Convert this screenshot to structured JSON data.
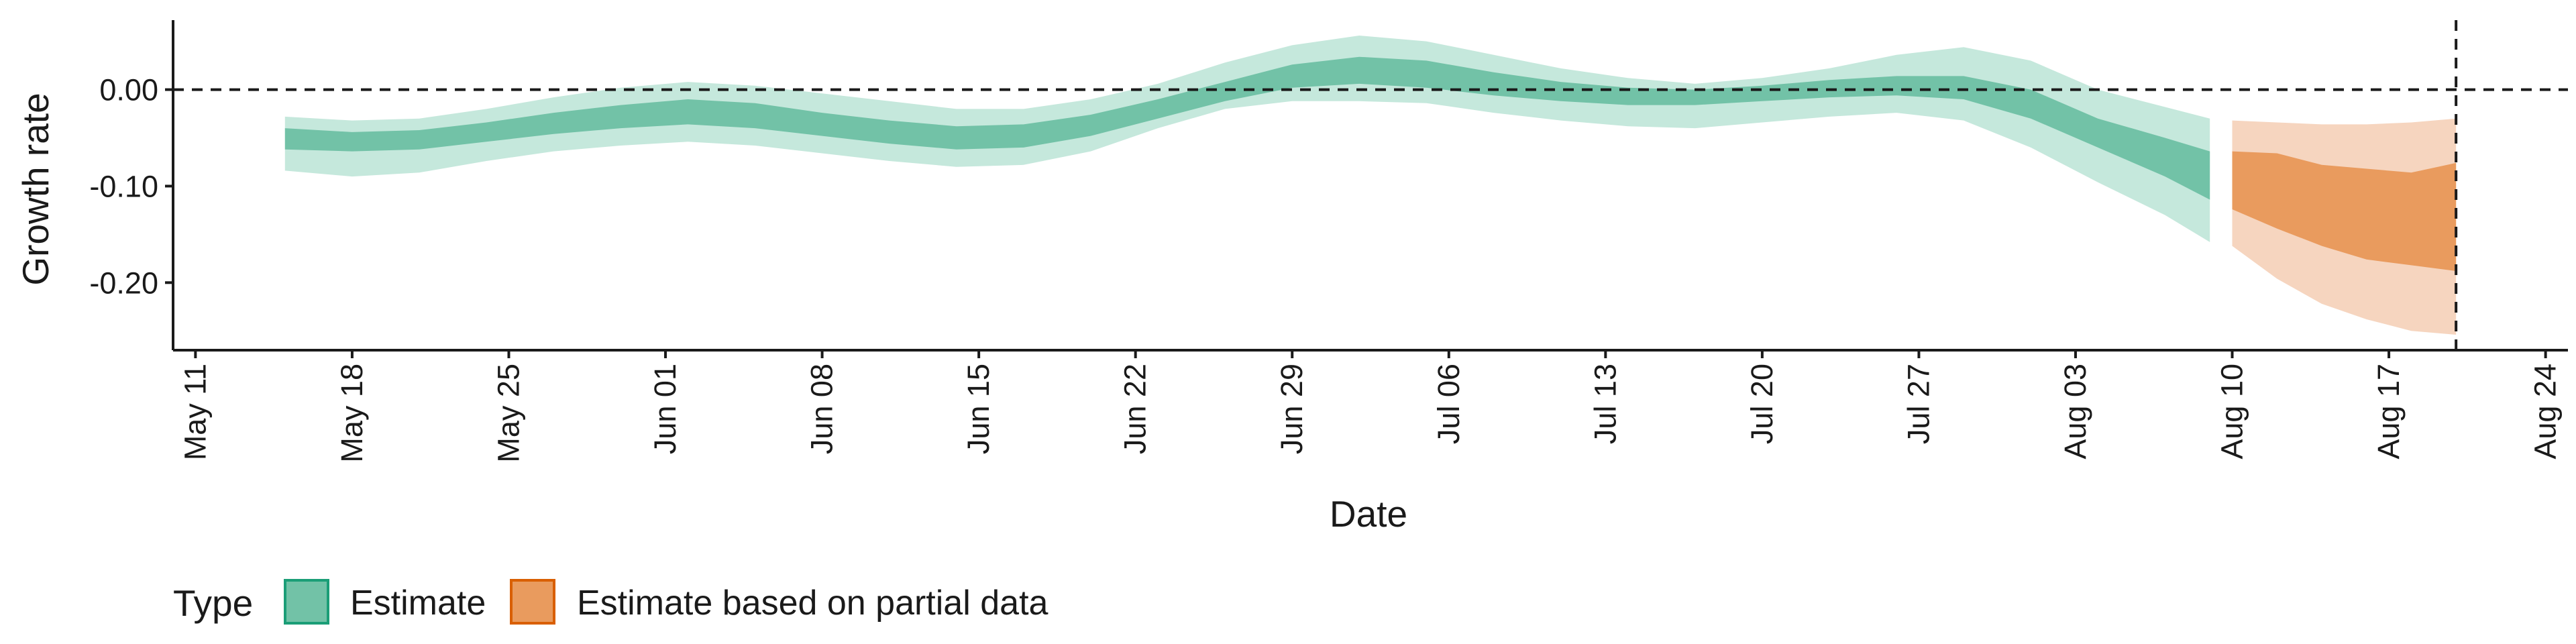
{
  "chart_data": {
    "type": "area",
    "title": "",
    "xlabel": "Date",
    "ylabel": "Growth rate",
    "ylim": [
      -0.27,
      0.072
    ],
    "xlim": [
      "2020-05-10",
      "2020-08-25"
    ],
    "grid": false,
    "y_ticks": [
      {
        "value": 0.0,
        "label": "0.00"
      },
      {
        "value": -0.1,
        "label": "-0.10"
      },
      {
        "value": -0.2,
        "label": "-0.20"
      }
    ],
    "x_ticks": [
      {
        "date": "2020-05-11",
        "label": "May 11"
      },
      {
        "date": "2020-05-18",
        "label": "May 18"
      },
      {
        "date": "2020-05-25",
        "label": "May 25"
      },
      {
        "date": "2020-06-01",
        "label": "Jun 01"
      },
      {
        "date": "2020-06-08",
        "label": "Jun 08"
      },
      {
        "date": "2020-06-15",
        "label": "Jun 15"
      },
      {
        "date": "2020-06-22",
        "label": "Jun 22"
      },
      {
        "date": "2020-06-29",
        "label": "Jun 29"
      },
      {
        "date": "2020-07-06",
        "label": "Jul 06"
      },
      {
        "date": "2020-07-13",
        "label": "Jul 13"
      },
      {
        "date": "2020-07-20",
        "label": "Jul 20"
      },
      {
        "date": "2020-07-27",
        "label": "Jul 27"
      },
      {
        "date": "2020-08-03",
        "label": "Aug 03"
      },
      {
        "date": "2020-08-10",
        "label": "Aug 10"
      },
      {
        "date": "2020-08-17",
        "label": "Aug 17"
      },
      {
        "date": "2020-08-24",
        "label": "Aug 24"
      }
    ],
    "reference_lines": {
      "horizontal_y": 0.0,
      "vertical_date": "2020-08-20",
      "style": "dashed"
    },
    "legend": {
      "title": "Type",
      "position": "bottom-left",
      "entries": [
        {
          "label": "Estimate",
          "color": "#72c2a7",
          "border": "#1b9e77"
        },
        {
          "label": "Estimate based on partial data",
          "color": "#e99b5e",
          "border": "#d95f02"
        }
      ]
    },
    "series": [
      {
        "name": "Estimate",
        "outer_color": "#c5e8dc",
        "inner_color": "#72c2a7",
        "x": [
          "2020-05-15",
          "2020-05-18",
          "2020-05-21",
          "2020-05-24",
          "2020-05-27",
          "2020-05-30",
          "2020-06-02",
          "2020-06-05",
          "2020-06-08",
          "2020-06-11",
          "2020-06-14",
          "2020-06-17",
          "2020-06-20",
          "2020-06-23",
          "2020-06-26",
          "2020-06-29",
          "2020-07-02",
          "2020-07-05",
          "2020-07-08",
          "2020-07-11",
          "2020-07-14",
          "2020-07-17",
          "2020-07-20",
          "2020-07-23",
          "2020-07-26",
          "2020-07-29",
          "2020-08-01",
          "2020-08-04",
          "2020-08-07",
          "2020-08-09"
        ],
        "outer_upper": [
          -0.028,
          -0.032,
          -0.03,
          -0.02,
          -0.008,
          0.002,
          0.008,
          0.004,
          -0.004,
          -0.012,
          -0.02,
          -0.02,
          -0.01,
          0.006,
          0.028,
          0.046,
          0.056,
          0.05,
          0.036,
          0.022,
          0.012,
          0.006,
          0.012,
          0.022,
          0.036,
          0.044,
          0.03,
          0.0,
          -0.018,
          -0.03
        ],
        "inner_upper": [
          -0.04,
          -0.044,
          -0.042,
          -0.034,
          -0.024,
          -0.016,
          -0.01,
          -0.014,
          -0.024,
          -0.032,
          -0.038,
          -0.036,
          -0.026,
          -0.01,
          0.008,
          0.026,
          0.034,
          0.03,
          0.018,
          0.008,
          0.002,
          0.0,
          0.004,
          0.01,
          0.014,
          0.014,
          0.0,
          -0.03,
          -0.05,
          -0.064
        ],
        "inner_lower": [
          -0.062,
          -0.064,
          -0.062,
          -0.054,
          -0.046,
          -0.04,
          -0.036,
          -0.04,
          -0.048,
          -0.056,
          -0.062,
          -0.06,
          -0.048,
          -0.03,
          -0.012,
          0.002,
          0.006,
          0.002,
          -0.006,
          -0.012,
          -0.016,
          -0.016,
          -0.012,
          -0.008,
          -0.006,
          -0.01,
          -0.03,
          -0.06,
          -0.09,
          -0.114
        ],
        "outer_lower": [
          -0.084,
          -0.09,
          -0.086,
          -0.074,
          -0.064,
          -0.058,
          -0.054,
          -0.058,
          -0.066,
          -0.074,
          -0.08,
          -0.078,
          -0.064,
          -0.04,
          -0.02,
          -0.012,
          -0.012,
          -0.014,
          -0.024,
          -0.032,
          -0.038,
          -0.04,
          -0.034,
          -0.028,
          -0.024,
          -0.032,
          -0.06,
          -0.096,
          -0.13,
          -0.158
        ]
      },
      {
        "name": "Estimate based on partial data",
        "outer_color": "#f6d5bf",
        "inner_color": "#e99b5e",
        "x": [
          "2020-08-10",
          "2020-08-12",
          "2020-08-14",
          "2020-08-16",
          "2020-08-18",
          "2020-08-20"
        ],
        "outer_upper": [
          -0.032,
          -0.034,
          -0.036,
          -0.036,
          -0.034,
          -0.03
        ],
        "inner_upper": [
          -0.064,
          -0.066,
          -0.078,
          -0.082,
          -0.086,
          -0.076
        ],
        "inner_lower": [
          -0.124,
          -0.144,
          -0.162,
          -0.176,
          -0.182,
          -0.188
        ],
        "outer_lower": [
          -0.162,
          -0.196,
          -0.222,
          -0.238,
          -0.25,
          -0.254
        ]
      }
    ]
  }
}
